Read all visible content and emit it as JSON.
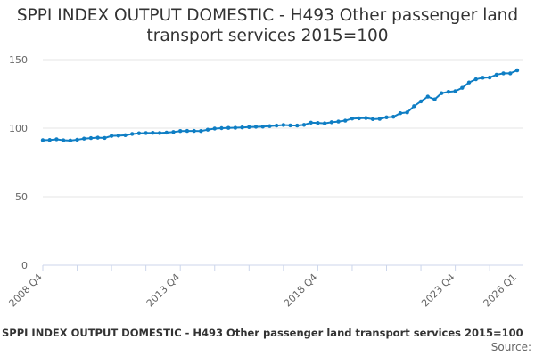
{
  "chart_data": {
    "type": "line",
    "title": "SPPI INDEX OUTPUT DOMESTIC - H493 Other passenger land transport services 2015=100",
    "xlabel": "",
    "ylabel": "",
    "ylim": [
      0,
      150
    ],
    "yticks": [
      0,
      50,
      100,
      150
    ],
    "grid": true,
    "x_start": "2008 Q4",
    "x_end": "2026 Q1",
    "x_frequency": "quarterly",
    "xtick_labels": [
      "2008 Q4",
      "2013 Q4",
      "2018 Q4",
      "2023 Q4",
      "2026 Q1"
    ],
    "series_color": "#0f7ec4",
    "values": [
      91.3,
      91.4,
      91.9,
      91.2,
      91.0,
      91.6,
      92.4,
      92.8,
      93.1,
      92.9,
      94.4,
      94.6,
      94.9,
      95.8,
      96.3,
      96.5,
      96.6,
      96.5,
      96.8,
      97.2,
      97.9,
      98.0,
      98.0,
      97.9,
      98.9,
      99.7,
      100.0,
      100.2,
      100.3,
      100.5,
      100.8,
      101.0,
      101.1,
      101.5,
      101.9,
      102.3,
      102.0,
      101.9,
      102.4,
      104.0,
      103.8,
      103.5,
      104.3,
      104.8,
      105.5,
      107.0,
      107.2,
      107.4,
      106.6,
      106.8,
      107.9,
      108.3,
      110.9,
      111.5,
      116.0,
      119.5,
      123.0,
      121.0,
      125.5,
      126.5,
      127.0,
      129.4,
      133.3,
      135.7,
      136.8,
      137.0,
      139.0,
      140.0,
      140.0,
      142.2
    ]
  },
  "footer": {
    "caption": "SPPI INDEX OUTPUT DOMESTIC - H493 Other passenger land transport services 2015=100",
    "source": "Source: "
  }
}
